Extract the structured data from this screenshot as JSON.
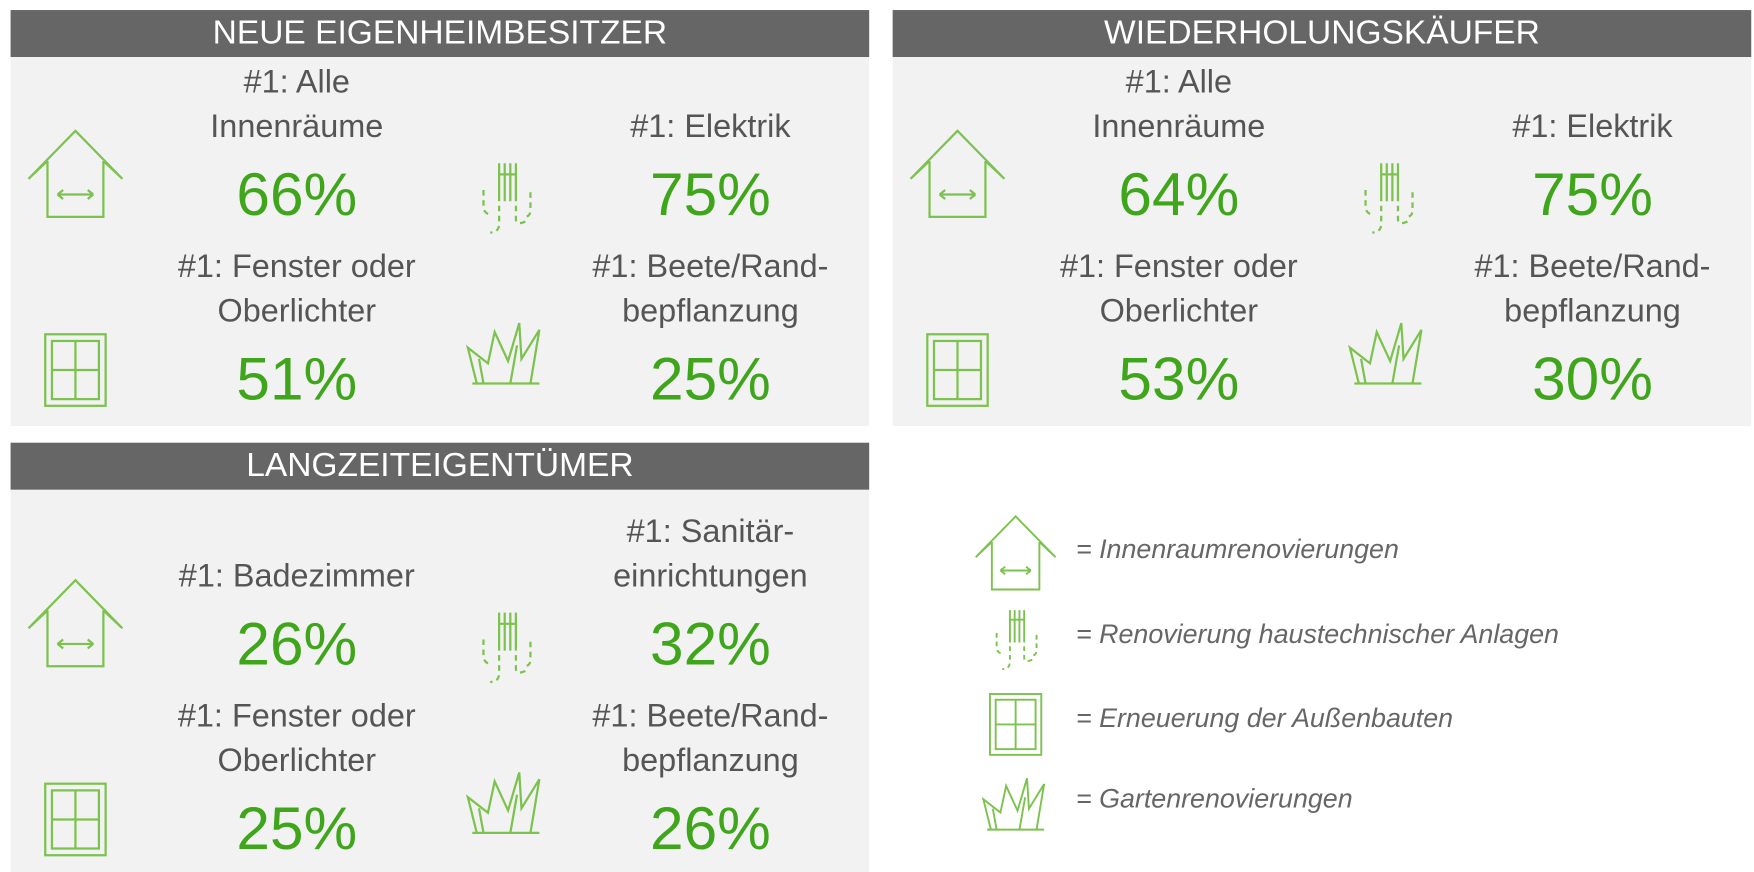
{
  "panels": [
    {
      "title": "NEUE EIGENHEIMBESITZER",
      "items": [
        {
          "label": [
            "#1: Alle",
            "Innenräume"
          ],
          "value": "66%"
        },
        {
          "label": [
            "#1: Elektrik"
          ],
          "value": "75%"
        },
        {
          "label": [
            "#1: Fenster oder",
            "Oberlichter"
          ],
          "value": "51%"
        },
        {
          "label": [
            "#1: Beete/Rand-",
            "bepflanzung"
          ],
          "value": "25%"
        }
      ]
    },
    {
      "title": "WIEDERHOLUNGSKÄUFER",
      "items": [
        {
          "label": [
            "#1: Alle",
            "Innenräume"
          ],
          "value": "64%"
        },
        {
          "label": [
            "#1: Elektrik"
          ],
          "value": "75%"
        },
        {
          "label": [
            "#1: Fenster oder",
            "Oberlichter"
          ],
          "value": "53%"
        },
        {
          "label": [
            "#1: Beete/Rand-",
            "bepflanzung"
          ],
          "value": "30%"
        }
      ]
    },
    {
      "title": "LANGZEITEIGENTÜMER",
      "items": [
        {
          "label": [
            "#1: Badezimmer"
          ],
          "value": "26%"
        },
        {
          "label": [
            "#1: Sanitär-",
            "einrichtungen"
          ],
          "value": "32%"
        },
        {
          "label": [
            "#1: Fenster oder",
            "Oberlichter"
          ],
          "value": "25%"
        },
        {
          "label": [
            "#1: Beete/Rand-",
            "bepflanzung"
          ],
          "value": "26%"
        }
      ]
    }
  ],
  "legend": [
    "=  Innenraumrenovierungen",
    "= Renovierung haustechnischer Anlagen",
    "= Erneuerung der Außenbauten",
    "= Gartenrenovierungen"
  ]
}
